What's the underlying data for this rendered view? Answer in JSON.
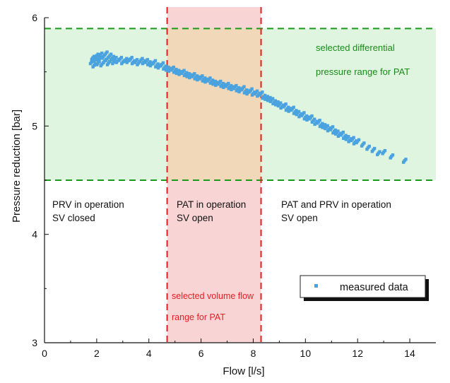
{
  "chart_data": {
    "type": "scatter",
    "xlabel": "Flow [l/s]",
    "ylabel": "Pressure reduction [bar]",
    "xlim": [
      0,
      15
    ],
    "ylim": [
      3,
      6
    ],
    "x_ticks": [
      0,
      2,
      4,
      6,
      8,
      10,
      12,
      14
    ],
    "y_ticks": [
      3,
      4,
      5,
      6
    ],
    "grid": false,
    "legend_position": "bottom-right",
    "series": [
      {
        "name": "measured data",
        "color": "#4aa3df",
        "marker": "square",
        "x": [
          1.8,
          1.85,
          1.9,
          1.95,
          2.0,
          2.05,
          2.1,
          2.15,
          2.2,
          2.25,
          2.3,
          2.35,
          2.4,
          2.45,
          2.5,
          2.55,
          2.6,
          2.65,
          2.7,
          2.8,
          2.9,
          3.0,
          3.1,
          3.2,
          3.3,
          3.4,
          3.5,
          3.6,
          3.7,
          3.8,
          3.9,
          4.0,
          4.1,
          4.2,
          4.3,
          4.4,
          4.5,
          4.6,
          4.7,
          4.8,
          4.9,
          5.0,
          5.1,
          5.2,
          5.3,
          5.4,
          5.5,
          5.6,
          5.7,
          5.8,
          5.9,
          6.0,
          6.1,
          6.2,
          6.3,
          6.4,
          6.5,
          6.6,
          6.7,
          6.8,
          6.9,
          7.0,
          7.1,
          7.2,
          7.3,
          7.4,
          7.5,
          7.6,
          7.7,
          7.8,
          7.9,
          8.0,
          8.1,
          8.2,
          8.3,
          8.4,
          8.5,
          8.6,
          8.7,
          8.8,
          8.9,
          9.0,
          9.1,
          9.2,
          9.3,
          9.4,
          9.5,
          9.6,
          9.7,
          9.8,
          9.9,
          10.0,
          10.1,
          10.2,
          10.3,
          10.4,
          10.5,
          10.6,
          10.7,
          10.8,
          10.9,
          11.0,
          11.1,
          11.2,
          11.3,
          11.4,
          11.5,
          11.6,
          11.7,
          11.8,
          11.9,
          12.0,
          12.2,
          12.4,
          12.6,
          12.8,
          13.0,
          13.3,
          13.8
        ],
        "y": [
          5.59,
          5.63,
          5.56,
          5.61,
          5.65,
          5.58,
          5.62,
          5.66,
          5.57,
          5.64,
          5.6,
          5.67,
          5.62,
          5.58,
          5.65,
          5.61,
          5.63,
          5.59,
          5.62,
          5.6,
          5.62,
          5.59,
          5.61,
          5.6,
          5.62,
          5.59,
          5.6,
          5.58,
          5.61,
          5.59,
          5.6,
          5.58,
          5.57,
          5.59,
          5.56,
          5.55,
          5.57,
          5.54,
          5.53,
          5.52,
          5.53,
          5.51,
          5.5,
          5.49,
          5.5,
          5.48,
          5.47,
          5.46,
          5.47,
          5.45,
          5.44,
          5.45,
          5.43,
          5.42,
          5.43,
          5.41,
          5.4,
          5.39,
          5.4,
          5.38,
          5.37,
          5.38,
          5.36,
          5.35,
          5.36,
          5.34,
          5.33,
          5.35,
          5.32,
          5.31,
          5.33,
          5.3,
          5.31,
          5.29,
          5.3,
          5.27,
          5.26,
          5.25,
          5.24,
          5.22,
          5.21,
          5.2,
          5.18,
          5.19,
          5.16,
          5.15,
          5.16,
          5.13,
          5.12,
          5.1,
          5.11,
          5.08,
          5.07,
          5.08,
          5.05,
          5.03,
          5.04,
          5.01,
          5.0,
          4.99,
          4.97,
          4.98,
          4.95,
          4.94,
          4.92,
          4.93,
          4.9,
          4.89,
          4.87,
          4.88,
          4.85,
          4.86,
          4.83,
          4.8,
          4.78,
          4.75,
          4.76,
          4.72,
          4.68
        ]
      }
    ],
    "annotations": [
      "selected differential",
      "pressure range for PAT",
      "PRV in operation",
      "SV closed",
      "PAT in operation",
      "SV open",
      "PAT and PRV in operation",
      "SV open",
      "selected volume flow",
      "range for PAT"
    ],
    "regions": [
      {
        "kind": "horizontal",
        "from": 4.5,
        "to": 5.9,
        "color": "#dff5df",
        "line_color": "#1a9a1a"
      },
      {
        "kind": "vertical",
        "from": 4.7,
        "to": 8.3,
        "color": "#f9d4d4",
        "line_color": "#e31e24"
      }
    ]
  }
}
